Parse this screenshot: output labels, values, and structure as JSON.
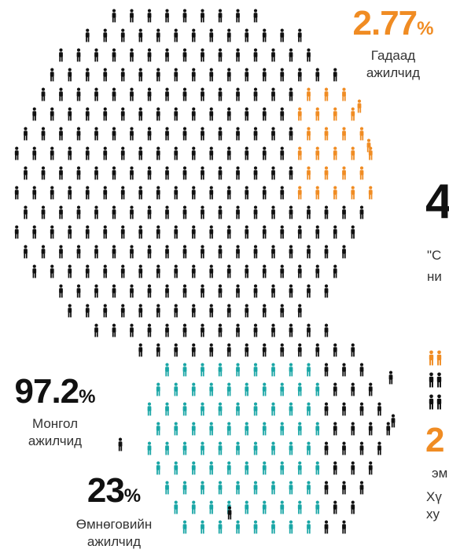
{
  "colors": {
    "black": "#111111",
    "orange": "#F08C23",
    "teal": "#1AA6A6",
    "text": "#333333"
  },
  "foreign": {
    "value": "2.77",
    "unit": "%",
    "label_line1": "Гадаад",
    "label_line2": "ажилчид"
  },
  "mongolian": {
    "value": "97.2",
    "unit": "%",
    "label_line1": "Монгол",
    "label_line2": "ажилчид"
  },
  "south_gobi": {
    "value": "23",
    "unit": "%",
    "label_line1": "Өмнөговийн",
    "label_line2": "ажилчид"
  },
  "cut_off": {
    "big_number": "4",
    "quote_line1": "\"С",
    "quote_line2": "ни",
    "women_number": "2",
    "women_label": "эм",
    "bottom_line1": "Хү",
    "bottom_line2": "ху"
  },
  "icons": {
    "person": "person-icon"
  }
}
